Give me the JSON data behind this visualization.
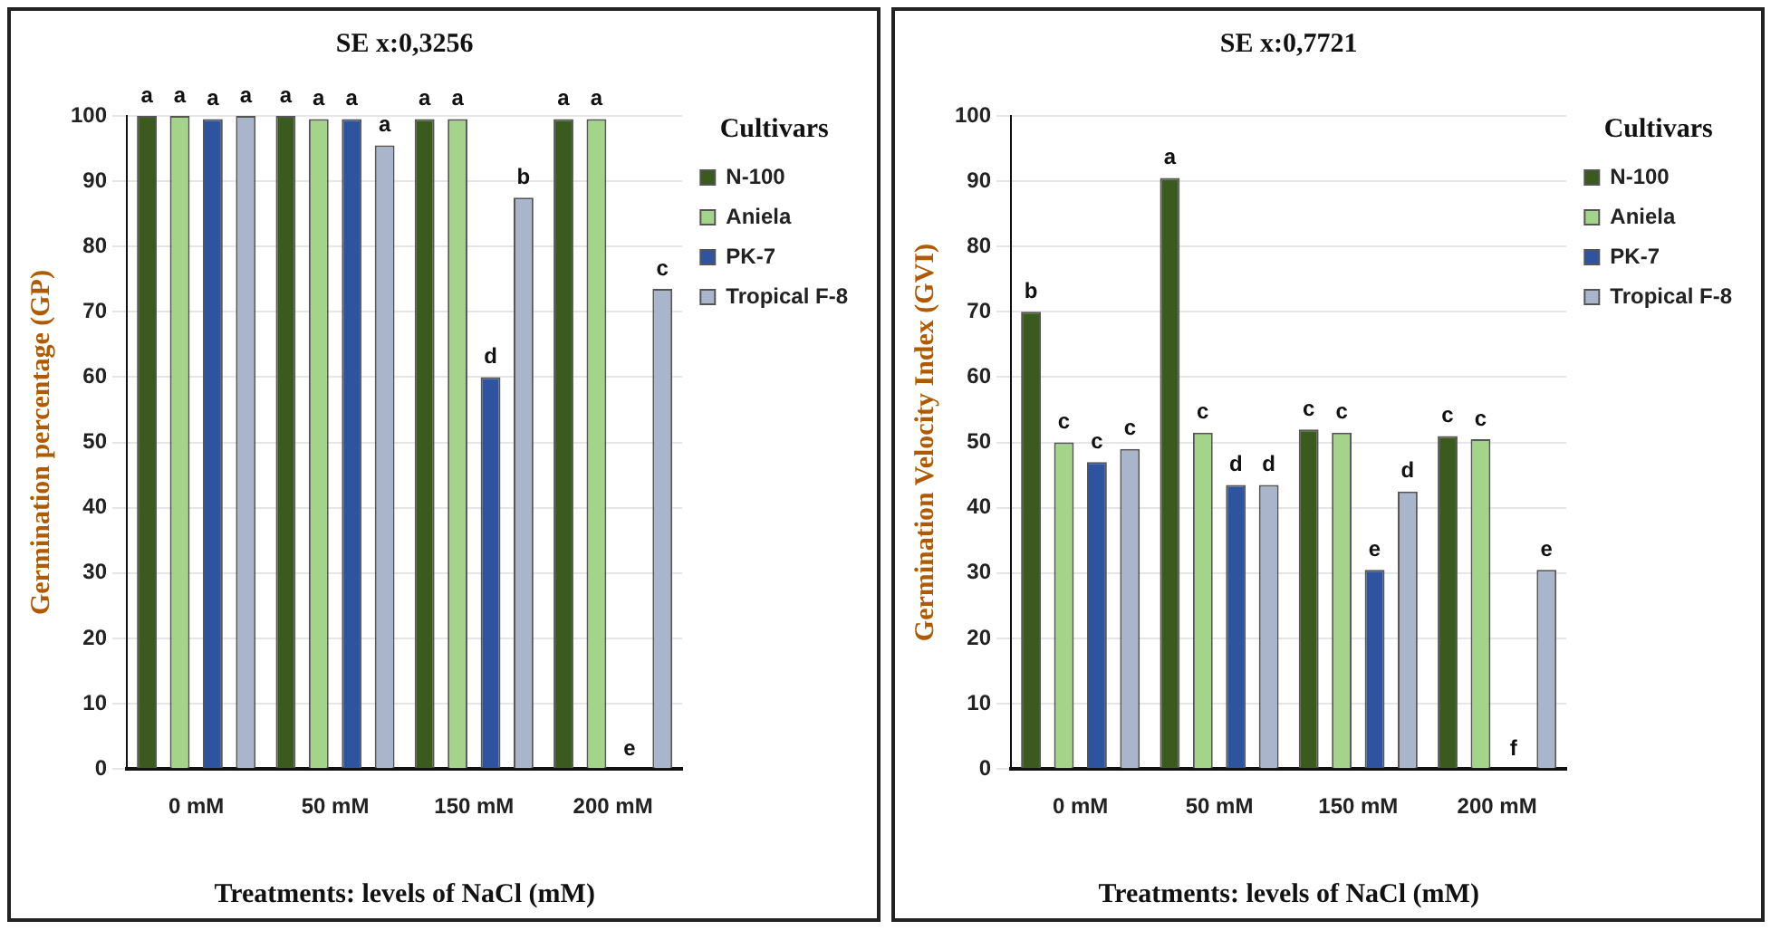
{
  "chart_data": [
    {
      "type": "bar",
      "annotations": [
        "SE x:0,3256"
      ],
      "xlabel": "Treatments: levels of NaCl (mM)",
      "ylabel": "Germination percentage (GP)",
      "legend_title": "Cultivars",
      "legend": "right",
      "grid": "y",
      "categories": [
        "0 mM",
        "50 mM",
        "150 mM",
        "200 mM"
      ],
      "ylim": [
        0,
        100
      ],
      "yticks": [
        0,
        10,
        20,
        30,
        40,
        50,
        60,
        70,
        80,
        90,
        100
      ],
      "series": [
        {
          "name": "N-100",
          "color": "#3b5a1e",
          "values": [
            100,
            100,
            99.5,
            99.5
          ],
          "value_labels": [
            "a",
            "a",
            "a",
            "a"
          ]
        },
        {
          "name": "Aniela",
          "color": "#a4d48a",
          "values": [
            100,
            99.5,
            99.5,
            99.5
          ],
          "value_labels": [
            "a",
            "a",
            "a",
            "a"
          ]
        },
        {
          "name": "PK-7",
          "color": "#2e54a0",
          "values": [
            99.5,
            99.5,
            60,
            0
          ],
          "value_labels": [
            "a",
            "a",
            "d",
            "e"
          ]
        },
        {
          "name": "Tropical F-8",
          "color": "#a9b5cb",
          "values": [
            100,
            95.5,
            87.5,
            73.5
          ],
          "value_labels": [
            "a",
            "a",
            "b",
            "c"
          ]
        }
      ]
    },
    {
      "type": "bar",
      "annotations": [
        "SE x:0,7721"
      ],
      "xlabel": "Treatments: levels of NaCl (mM)",
      "ylabel": "Germination Velocity Index (GVI)",
      "legend_title": "Cultivars",
      "legend": "right",
      "grid": "y",
      "categories": [
        "0 mM",
        "50 mM",
        "150 mM",
        "200 mM"
      ],
      "ylim": [
        0,
        100
      ],
      "yticks": [
        0,
        10,
        20,
        30,
        40,
        50,
        60,
        70,
        80,
        90,
        100
      ],
      "series": [
        {
          "name": "N-100",
          "color": "#3b5a1e",
          "values": [
            70,
            90.5,
            52,
            51
          ],
          "value_labels": [
            "b",
            "a",
            "c",
            "c"
          ]
        },
        {
          "name": "Aniela",
          "color": "#a4d48a",
          "values": [
            50,
            51.5,
            51.5,
            50.5
          ],
          "value_labels": [
            "c",
            "c",
            "c",
            "c"
          ]
        },
        {
          "name": "PK-7",
          "color": "#2e54a0",
          "values": [
            47,
            43.5,
            30.5,
            0
          ],
          "value_labels": [
            "c",
            "d",
            "e",
            "f"
          ]
        },
        {
          "name": "Tropical F-8",
          "color": "#a9b5cb",
          "values": [
            49,
            43.5,
            42.5,
            30.5
          ],
          "value_labels": [
            "c",
            "d",
            "d",
            "e"
          ]
        }
      ]
    }
  ]
}
